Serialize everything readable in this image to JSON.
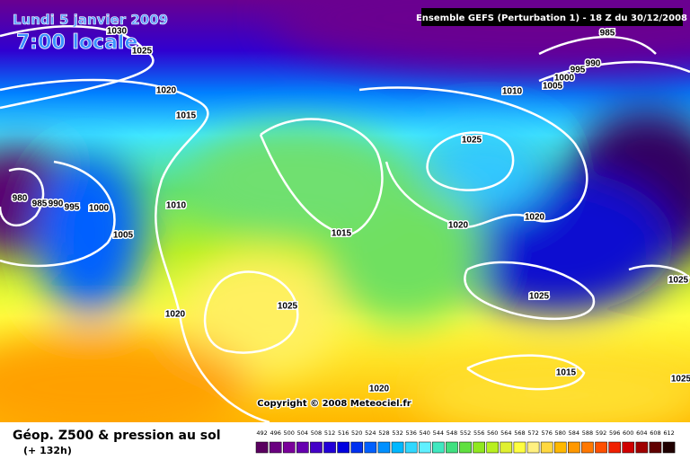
{
  "header": {
    "date": "Lundi 5 janvier 2009",
    "time": "7:00 locale",
    "model": "Ensemble GEFS (Perturbation 1)  -  18 Z du 30/12/2008"
  },
  "isobars": [
    1030,
    1025,
    1020,
    1015,
    980,
    985,
    990,
    995,
    1000,
    1005,
    1010,
    1020,
    1025,
    1015,
    1025,
    1020,
    1010,
    1005,
    1000,
    995,
    990,
    985,
    1020,
    1025,
    1015,
    1020,
    1025,
    1025
  ],
  "copyright": "Copyright © 2008 Meteociel.fr",
  "footer": {
    "title": "Géop. Z500 & pression au sol",
    "lead": "(+ 132h)"
  },
  "scale": {
    "values": [
      492,
      496,
      500,
      504,
      508,
      512,
      516,
      520,
      524,
      528,
      532,
      536,
      540,
      544,
      548,
      552,
      556,
      560,
      564,
      568,
      572,
      576,
      580,
      584,
      588,
      592,
      596,
      600,
      604,
      608,
      612
    ],
    "colors": [
      "#5a0060",
      "#6a0080",
      "#7a009a",
      "#6600b0",
      "#4400c8",
      "#2200d8",
      "#0000e0",
      "#0030f0",
      "#0060ff",
      "#0090ff",
      "#00b8ff",
      "#30d8ff",
      "#60f0ff",
      "#40e8c0",
      "#40e080",
      "#60e040",
      "#90e820",
      "#b8f020",
      "#e0f030",
      "#ffff40",
      "#fff080",
      "#ffd840",
      "#ffb800",
      "#ff9800",
      "#ff7800",
      "#ff5000",
      "#f02000",
      "#d00000",
      "#a00000",
      "#600000",
      "#200000"
    ]
  }
}
